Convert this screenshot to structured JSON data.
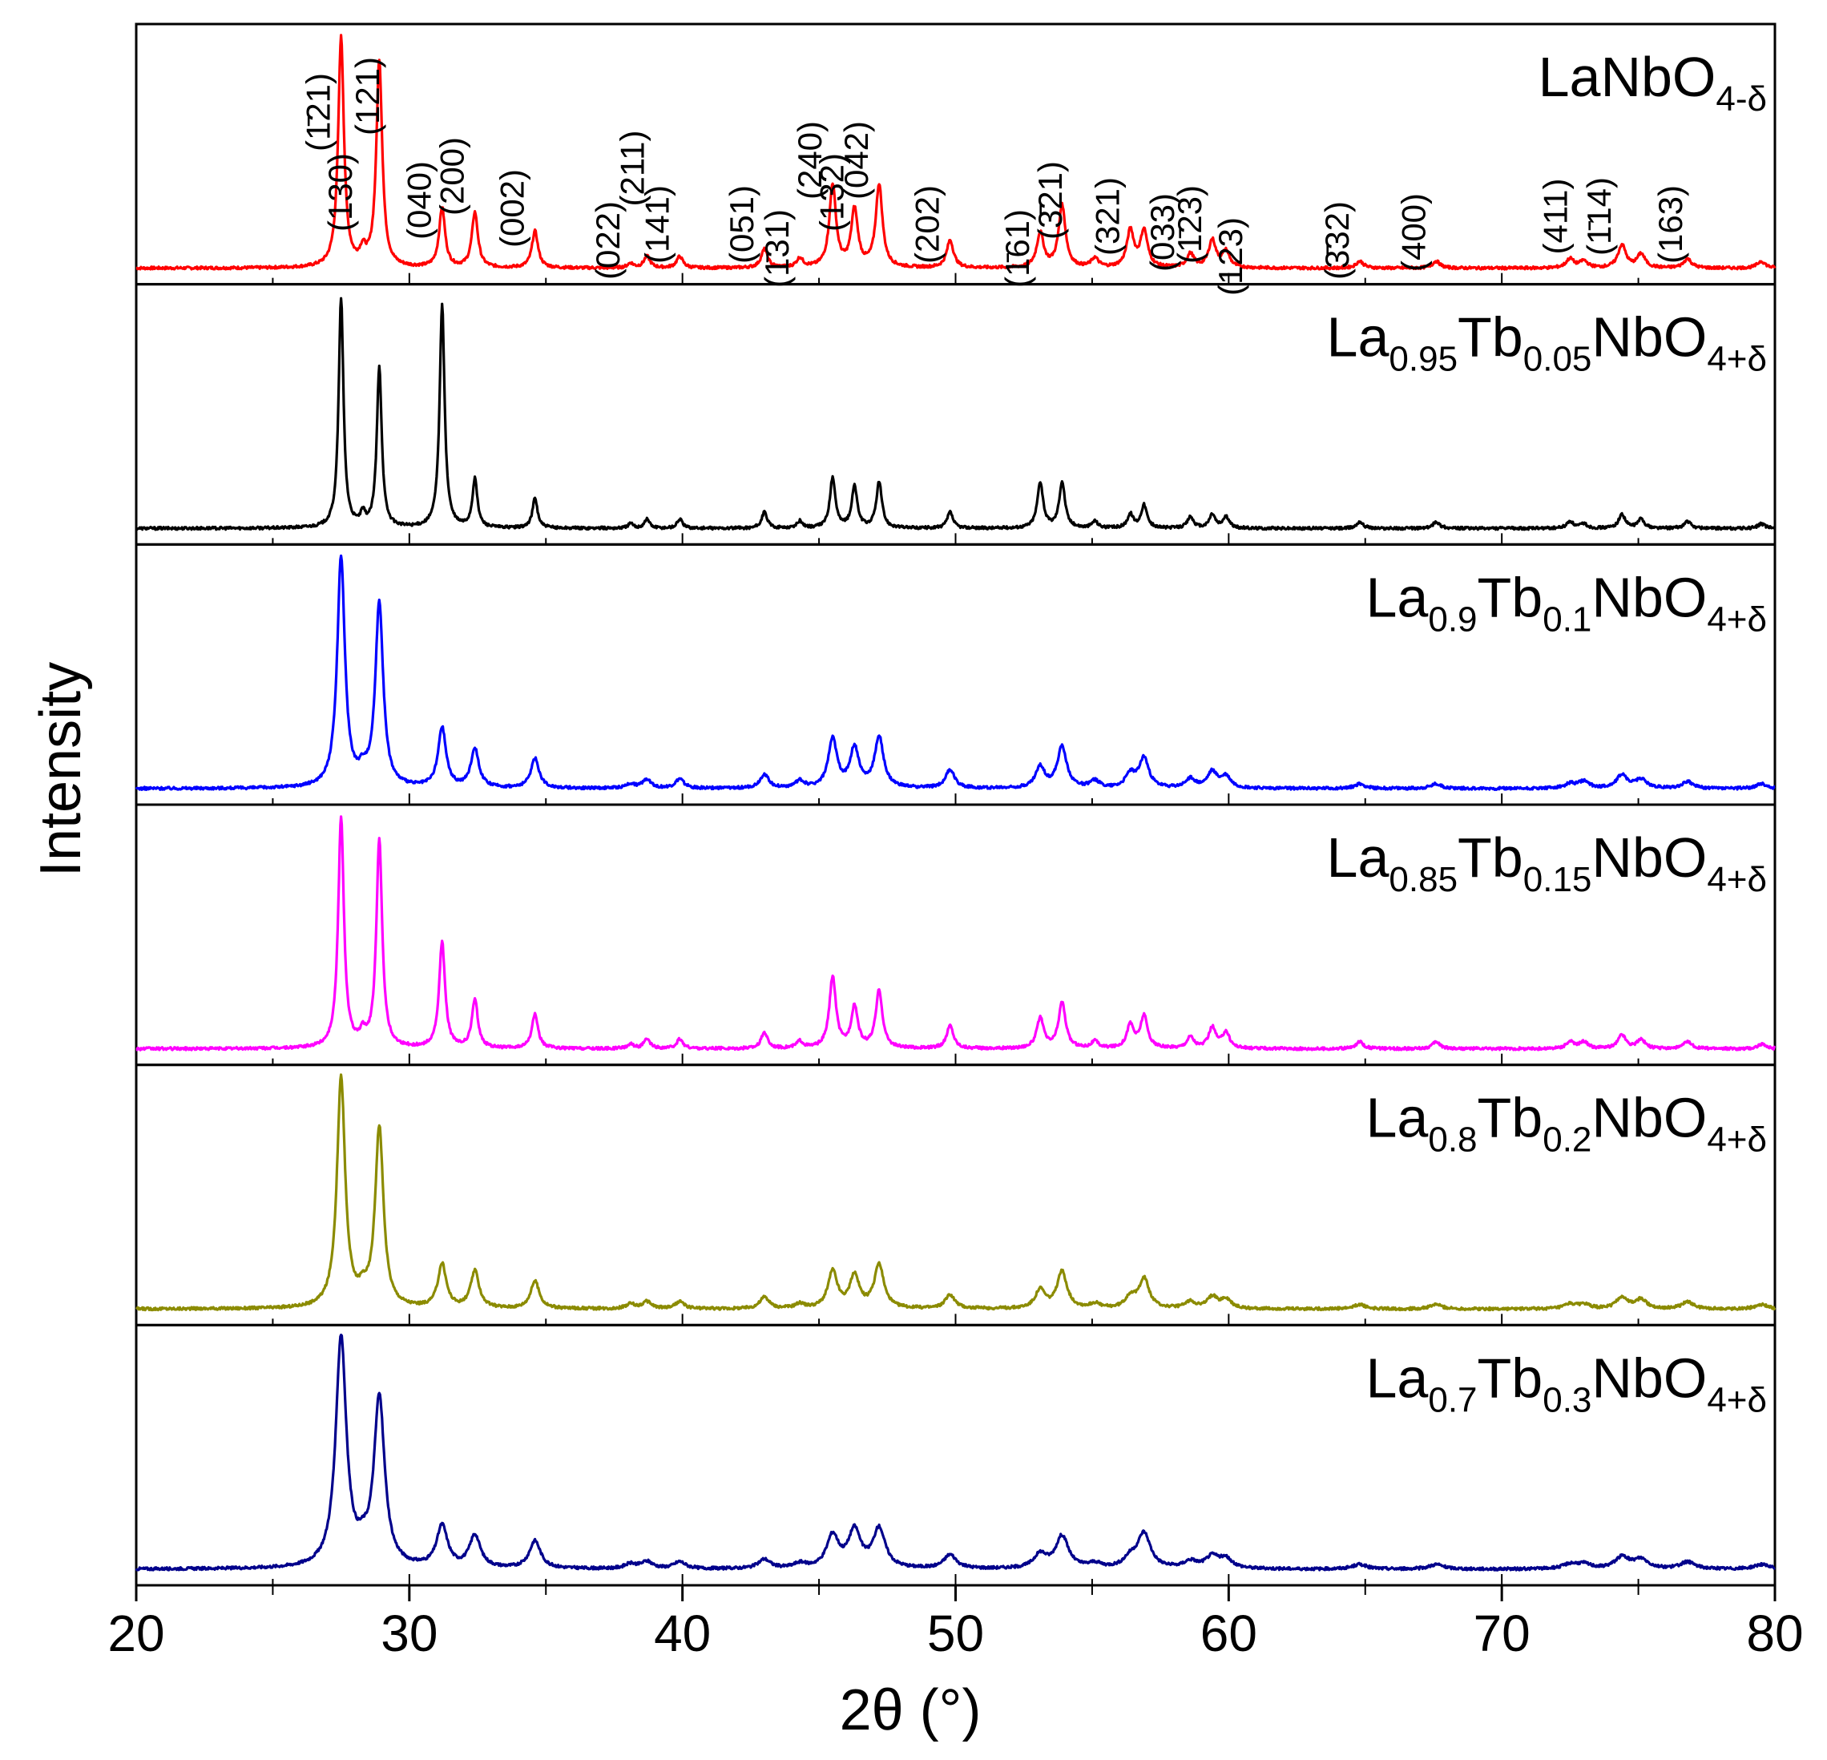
{
  "chart_data": {
    "type": "line",
    "title": "",
    "xlabel": "2θ (°)",
    "ylabel": "Intensity",
    "xlim": [
      20,
      80
    ],
    "xticks": [
      20,
      30,
      40,
      50,
      60,
      70,
      80
    ],
    "xtick_labels": [
      "20",
      "30",
      "40",
      "50",
      "60",
      "70",
      "80"
    ],
    "grid": false,
    "legend": "none",
    "peaks_2theta": [
      27.5,
      28.3,
      28.9,
      31.2,
      32.4,
      34.6,
      38.1,
      38.7,
      39.9,
      43.0,
      44.3,
      45.5,
      46.3,
      47.2,
      49.8,
      53.1,
      53.9,
      55.1,
      56.4,
      56.9,
      58.6,
      59.4,
      59.9,
      64.8,
      67.6,
      72.5,
      73.0,
      74.4,
      75.1,
      76.8,
      79.5
    ],
    "series": [
      {
        "name": "LaNbO4-δ",
        "label_parts": [
          {
            "t": "LaNbO",
            "sub": false
          },
          {
            "t": "4-δ",
            "sub": true
          }
        ],
        "color": "#ff0000",
        "width": 0.12,
        "intensity": [
          1.0,
          0.06,
          0.9,
          0.26,
          0.24,
          0.16,
          0.02,
          0.05,
          0.05,
          0.08,
          0.04,
          0.36,
          0.25,
          0.36,
          0.12,
          0.15,
          0.27,
          0.04,
          0.16,
          0.16,
          0.06,
          0.12,
          0.07,
          0.03,
          0.03,
          0.04,
          0.03,
          0.1,
          0.06,
          0.04,
          0.03
        ]
      },
      {
        "name": "La0.95Tb0.05NbO4+δ",
        "label_parts": [
          {
            "t": "La",
            "sub": false
          },
          {
            "t": "0.95",
            "sub": true
          },
          {
            "t": "Tb",
            "sub": false
          },
          {
            "t": "0.05",
            "sub": true
          },
          {
            "t": "NbO",
            "sub": false
          },
          {
            "t": "4+δ",
            "sub": true
          }
        ],
        "color": "#000000",
        "width": 0.1,
        "intensity": [
          1.0,
          0.05,
          0.7,
          0.97,
          0.21,
          0.13,
          0.02,
          0.04,
          0.04,
          0.07,
          0.03,
          0.22,
          0.18,
          0.2,
          0.07,
          0.2,
          0.2,
          0.03,
          0.06,
          0.1,
          0.05,
          0.06,
          0.05,
          0.03,
          0.03,
          0.03,
          0.02,
          0.06,
          0.04,
          0.03,
          0.02
        ]
      },
      {
        "name": "La0.9Tb0.1NbO4+δ",
        "label_parts": [
          {
            "t": "La",
            "sub": false
          },
          {
            "t": "0.9",
            "sub": true
          },
          {
            "t": "Tb",
            "sub": false
          },
          {
            "t": "0.1",
            "sub": true
          },
          {
            "t": "NbO",
            "sub": false
          },
          {
            "t": "4+δ",
            "sub": true
          }
        ],
        "color": "#0000ff",
        "width": 0.16,
        "intensity": [
          1.0,
          0.05,
          0.8,
          0.26,
          0.17,
          0.13,
          0.02,
          0.04,
          0.04,
          0.06,
          0.03,
          0.21,
          0.17,
          0.22,
          0.08,
          0.09,
          0.18,
          0.03,
          0.06,
          0.13,
          0.04,
          0.07,
          0.05,
          0.02,
          0.02,
          0.02,
          0.03,
          0.06,
          0.04,
          0.03,
          0.02
        ]
      },
      {
        "name": "La0.85Tb0.15NbO4+δ",
        "label_parts": [
          {
            "t": "La",
            "sub": false
          },
          {
            "t": "0.85",
            "sub": true
          },
          {
            "t": "Tb",
            "sub": false
          },
          {
            "t": "0.15",
            "sub": true
          },
          {
            "t": "NbO",
            "sub": false
          },
          {
            "t": "4+δ",
            "sub": true
          }
        ],
        "color": "#ff00ff",
        "width": 0.12,
        "intensity": [
          1.0,
          0.05,
          0.9,
          0.46,
          0.21,
          0.15,
          0.02,
          0.04,
          0.04,
          0.07,
          0.03,
          0.31,
          0.18,
          0.25,
          0.1,
          0.13,
          0.2,
          0.03,
          0.1,
          0.14,
          0.05,
          0.09,
          0.07,
          0.03,
          0.03,
          0.03,
          0.03,
          0.06,
          0.04,
          0.03,
          0.02
        ]
      },
      {
        "name": "La0.8Tb0.2NbO4+δ",
        "label_parts": [
          {
            "t": "La",
            "sub": false
          },
          {
            "t": "0.8",
            "sub": true
          },
          {
            "t": "Tb",
            "sub": false
          },
          {
            "t": "0.2",
            "sub": true
          },
          {
            "t": "NbO",
            "sub": false
          },
          {
            "t": "4+δ",
            "sub": true
          }
        ],
        "color": "#8b8b00",
        "width": 0.17,
        "intensity": [
          1.0,
          0.05,
          0.78,
          0.19,
          0.16,
          0.12,
          0.02,
          0.03,
          0.03,
          0.05,
          0.02,
          0.16,
          0.14,
          0.19,
          0.06,
          0.08,
          0.16,
          0.02,
          0.05,
          0.13,
          0.03,
          0.05,
          0.04,
          0.02,
          0.02,
          0.02,
          0.02,
          0.05,
          0.04,
          0.03,
          0.02
        ]
      },
      {
        "name": "La0.7Tb0.3NbO4+δ",
        "label_parts": [
          {
            "t": "La",
            "sub": false
          },
          {
            "t": "0.7",
            "sub": true
          },
          {
            "t": "Tb",
            "sub": false
          },
          {
            "t": "0.3",
            "sub": true
          },
          {
            "t": "NbO",
            "sub": false
          },
          {
            "t": "4+δ",
            "sub": true
          }
        ],
        "color": "#00008b",
        "width": 0.22,
        "intensity": [
          1.0,
          0.05,
          0.73,
          0.18,
          0.14,
          0.12,
          0.02,
          0.03,
          0.03,
          0.04,
          0.02,
          0.14,
          0.16,
          0.17,
          0.06,
          0.06,
          0.14,
          0.02,
          0.04,
          0.15,
          0.03,
          0.05,
          0.04,
          0.02,
          0.02,
          0.02,
          0.02,
          0.05,
          0.04,
          0.03,
          0.02
        ]
      }
    ],
    "annotations": [
      {
        "text": "(1̄21)",
        "x": 27.5
      },
      {
        "text": "(130)",
        "x": 28.3
      },
      {
        "text": "(121)",
        "x": 29.3
      },
      {
        "text": "(040)",
        "x": 31.2
      },
      {
        "text": "(200)",
        "x": 32.4
      },
      {
        "text": "(002)",
        "x": 34.6
      },
      {
        "text": "(022)",
        "x": 38.1
      },
      {
        "text": "(211)",
        "x": 39.0
      },
      {
        "text": "(141)",
        "x": 39.9
      },
      {
        "text": "(051)",
        "x": 43.0
      },
      {
        "text": "(1̄31)",
        "x": 44.3
      },
      {
        "text": "(240)",
        "x": 45.5
      },
      {
        "text": "(132)",
        "x": 46.3
      },
      {
        "text": "(042)",
        "x": 47.2
      },
      {
        "text": "(202)",
        "x": 49.8
      },
      {
        "text": "(1̄61)",
        "x": 53.1
      },
      {
        "text": "(3̄21)",
        "x": 54.3
      },
      {
        "text": "(321)",
        "x": 56.4
      },
      {
        "text": "(033)",
        "x": 58.4
      },
      {
        "text": "(1̄23)",
        "x": 59.4
      },
      {
        "text": "(123)",
        "x": 60.9
      },
      {
        "text": "(3̄32)",
        "x": 64.8
      },
      {
        "text": "(400)",
        "x": 67.6
      },
      {
        "text": "(411)",
        "x": 72.8
      },
      {
        "text": "(1̄14)",
        "x": 74.4
      },
      {
        "text": "(163)",
        "x": 77.0
      }
    ]
  }
}
